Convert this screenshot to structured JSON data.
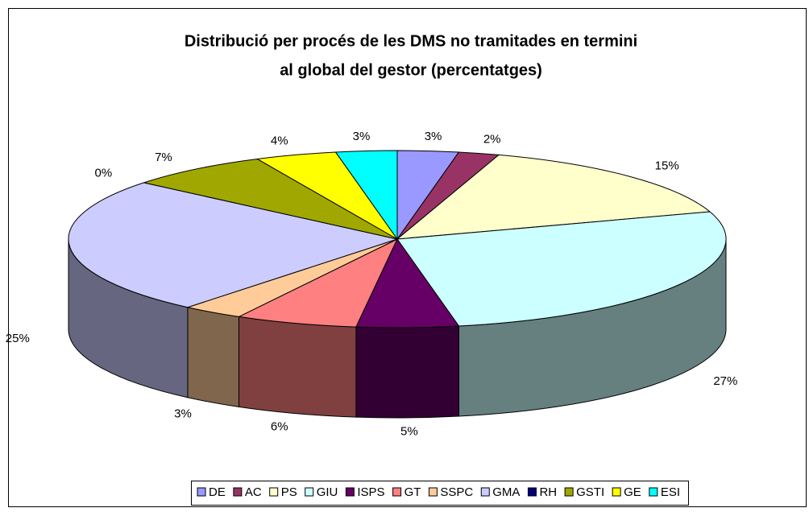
{
  "chart_data": {
    "type": "pie3d",
    "title": [
      "Distribució per procés de les DMS no tramitades en termini",
      "al global del gestor (percentatges)"
    ],
    "categories": [
      "DE",
      "AC",
      "PS",
      "GIU",
      "ISPS",
      "GT",
      "SSPC",
      "GMA",
      "RH",
      "GSTI",
      "GE",
      "ESI"
    ],
    "values": [
      3,
      2,
      15,
      27,
      5,
      6,
      3,
      25,
      0,
      7,
      4,
      3
    ],
    "value_labels": [
      "3%",
      "2%",
      "15%",
      "27%",
      "5%",
      "6%",
      "3%",
      "25%",
      "0%",
      "7%",
      "4%",
      "3%"
    ],
    "colors": [
      "#9999ff",
      "#993366",
      "#ffffcc",
      "#ccffff",
      "#660066",
      "#ff8080",
      "#ffcc99",
      "#ccccff",
      "#000080",
      "#a0a800",
      "#ffff00",
      "#00ffff"
    ],
    "legend": "bottom"
  }
}
